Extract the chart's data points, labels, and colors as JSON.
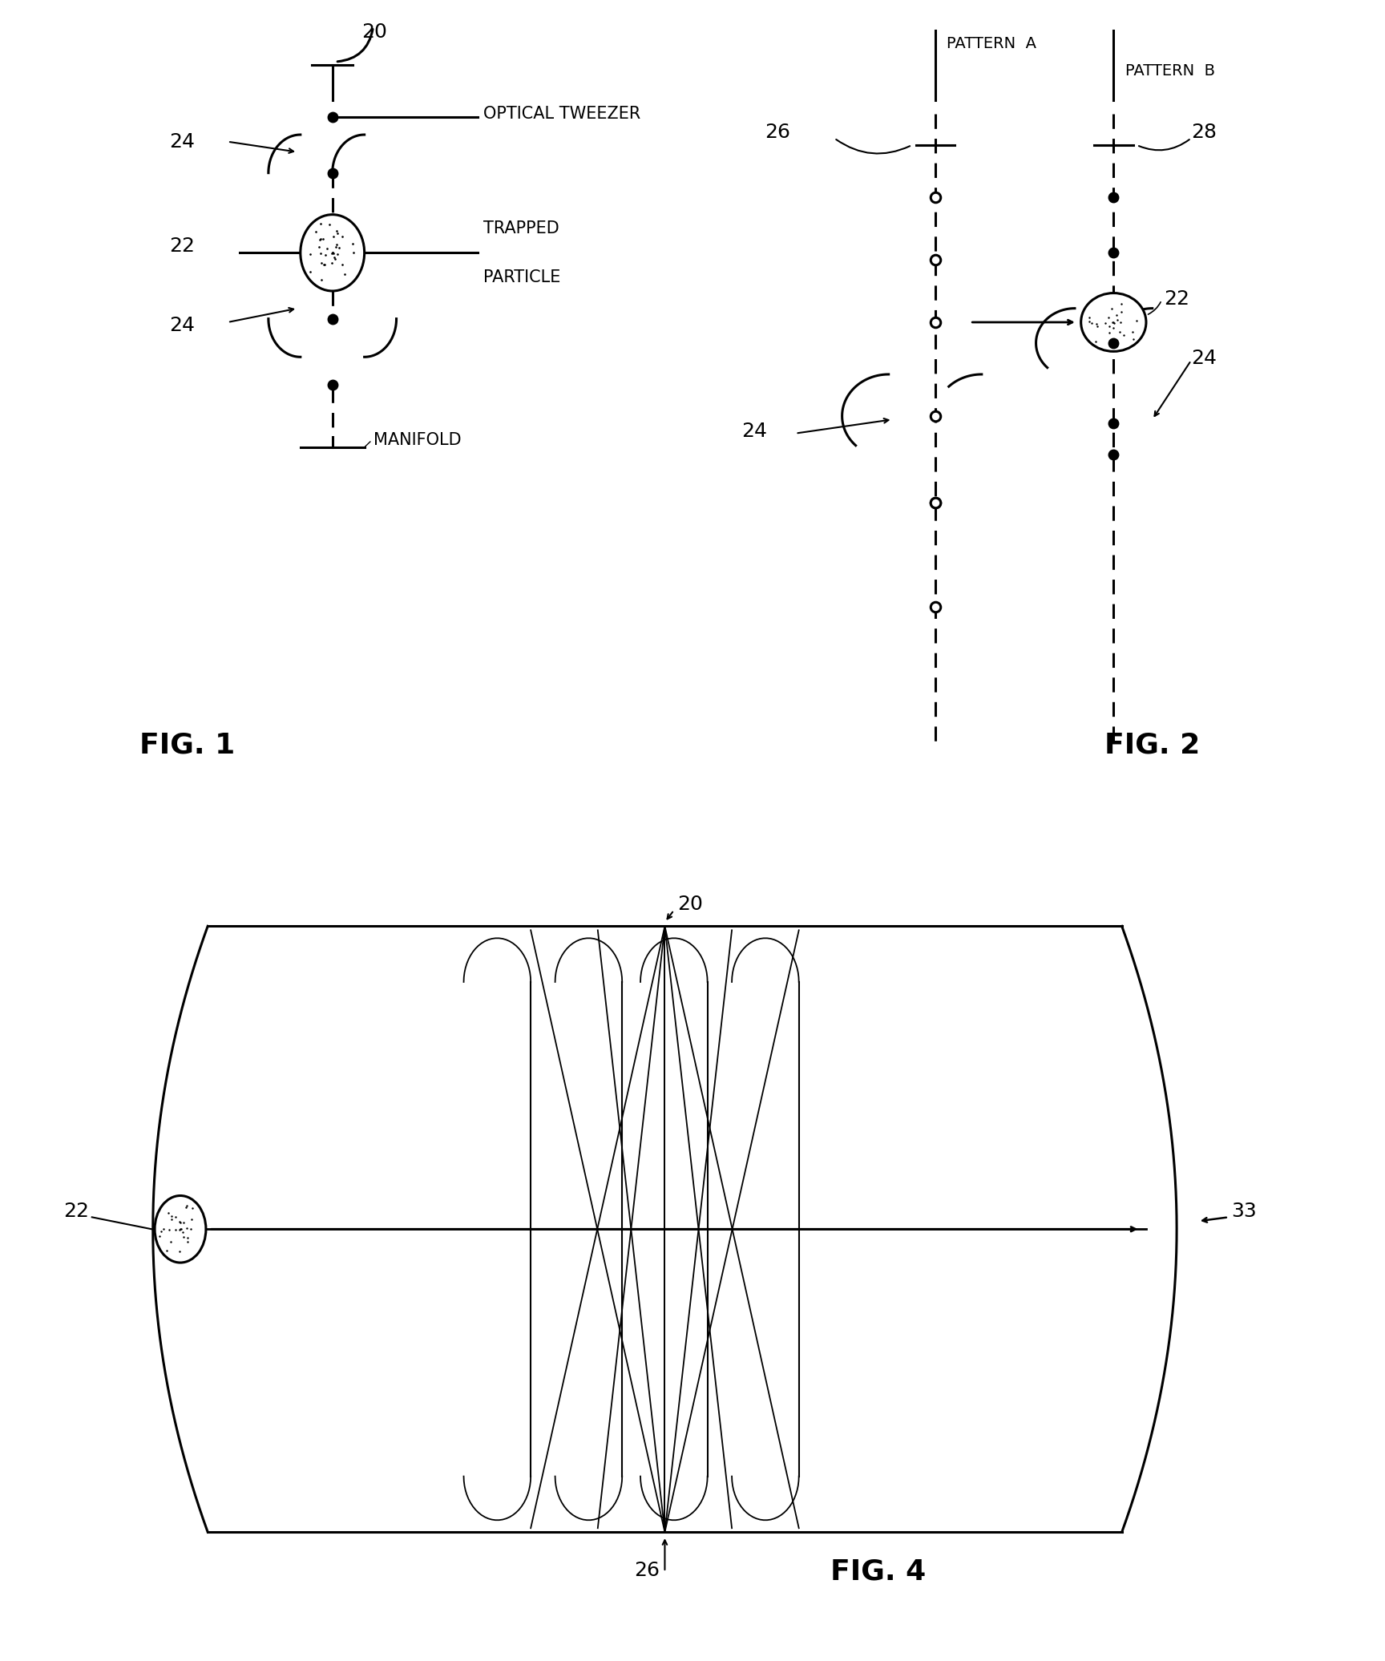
{
  "bg_color": "#ffffff",
  "fig_width": 17.28,
  "fig_height": 20.72,
  "fig1_label": "FIG. 1",
  "fig2_label": "FIG. 2",
  "fig4_label": "FIG. 4",
  "label_fontsize": 26,
  "annotation_fontsize": 15,
  "number_fontsize": 18,
  "lw": 2.2
}
